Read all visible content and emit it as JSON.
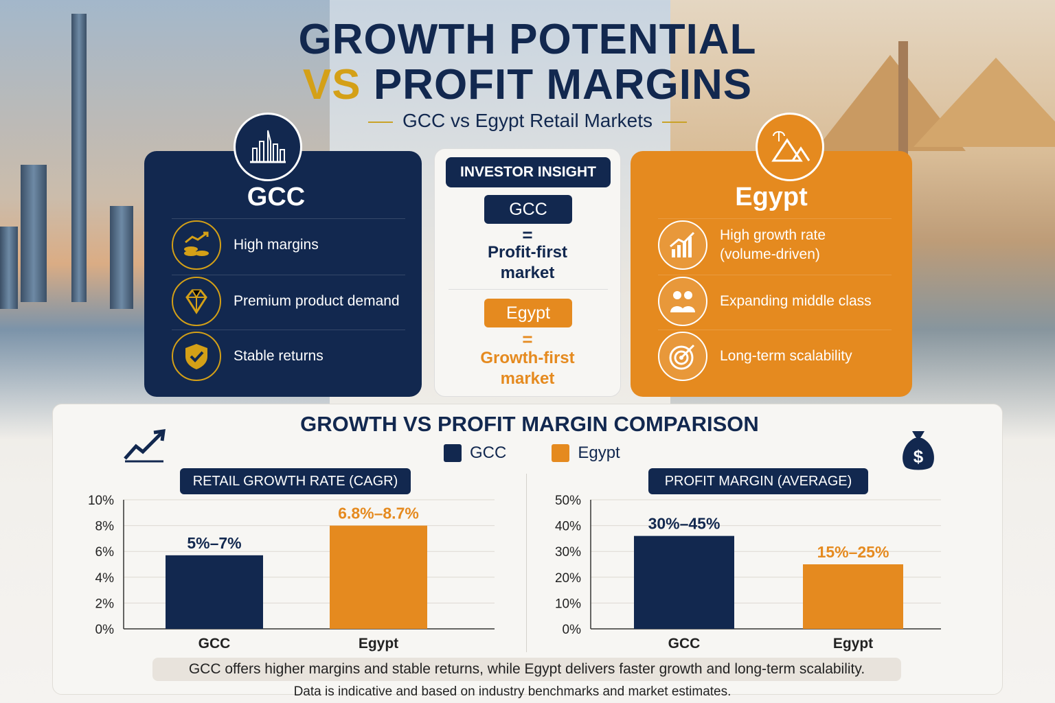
{
  "header": {
    "title_line1": "GROWTH POTENTIAL",
    "title_vs": "VS",
    "title_line2_rest": "PROFIT MARGINS",
    "subtitle": "GCC vs Egypt Retail Markets"
  },
  "gcc_card": {
    "title": "GCC",
    "icon": "skyline-icon",
    "features": [
      {
        "icon": "coins-growth-icon",
        "text": "High margins"
      },
      {
        "icon": "diamond-icon",
        "text": "Premium product demand"
      },
      {
        "icon": "shield-check-icon",
        "text": "Stable returns"
      }
    ]
  },
  "egypt_card": {
    "title": "Egypt",
    "icon": "pyramids-icon",
    "features": [
      {
        "icon": "bar-growth-icon",
        "text_line1": "High growth rate",
        "text_line2": "(volume-driven)"
      },
      {
        "icon": "people-icon",
        "text_line1": "Expanding middle class",
        "text_line2": ""
      },
      {
        "icon": "target-icon",
        "text_line1": "Long-term scalability",
        "text_line2": ""
      }
    ]
  },
  "insight": {
    "heading": "INVESTOR INSIGHT",
    "gcc_pill": "GCC",
    "equals": "=",
    "gcc_line1": "Profit-first",
    "gcc_line2": "market",
    "egypt_pill": "Egypt",
    "egypt_line1": "Growth-first",
    "egypt_line2": "market"
  },
  "comparison": {
    "title": "GROWTH VS PROFIT MARGIN COMPARISON",
    "legend": [
      {
        "name": "GCC",
        "color": "#12284f"
      },
      {
        "name": "Egypt",
        "color": "#e58a1f"
      }
    ]
  },
  "colors": {
    "gcc": "#12284f",
    "egypt": "#e58a1f",
    "accent": "#d4a017"
  },
  "chart_data": [
    {
      "type": "bar",
      "title": "RETAIL GROWTH RATE (CAGR)",
      "categories": [
        "GCC",
        "Egypt"
      ],
      "values": [
        5.7,
        8.0
      ],
      "data_labels": [
        "5%–7%",
        "6.8%–8.7%"
      ],
      "yticks": [
        "0%",
        "2%",
        "4%",
        "6%",
        "8%",
        "10%"
      ],
      "ylim": [
        0,
        10
      ],
      "grid": true
    },
    {
      "type": "bar",
      "title": "PROFIT MARGIN (AVERAGE)",
      "categories": [
        "GCC",
        "Egypt"
      ],
      "values": [
        36,
        25
      ],
      "data_labels": [
        "30%–45%",
        "15%–25%"
      ],
      "yticks": [
        "0%",
        "10%",
        "20%",
        "30%",
        "40%",
        "50%"
      ],
      "ylim": [
        0,
        50
      ],
      "grid": true
    }
  ],
  "summary": "GCC offers higher margins and stable returns, while Egypt delivers faster growth and long-term scalability.",
  "footnote": "Data is indicative and based on industry benchmarks and market estimates."
}
